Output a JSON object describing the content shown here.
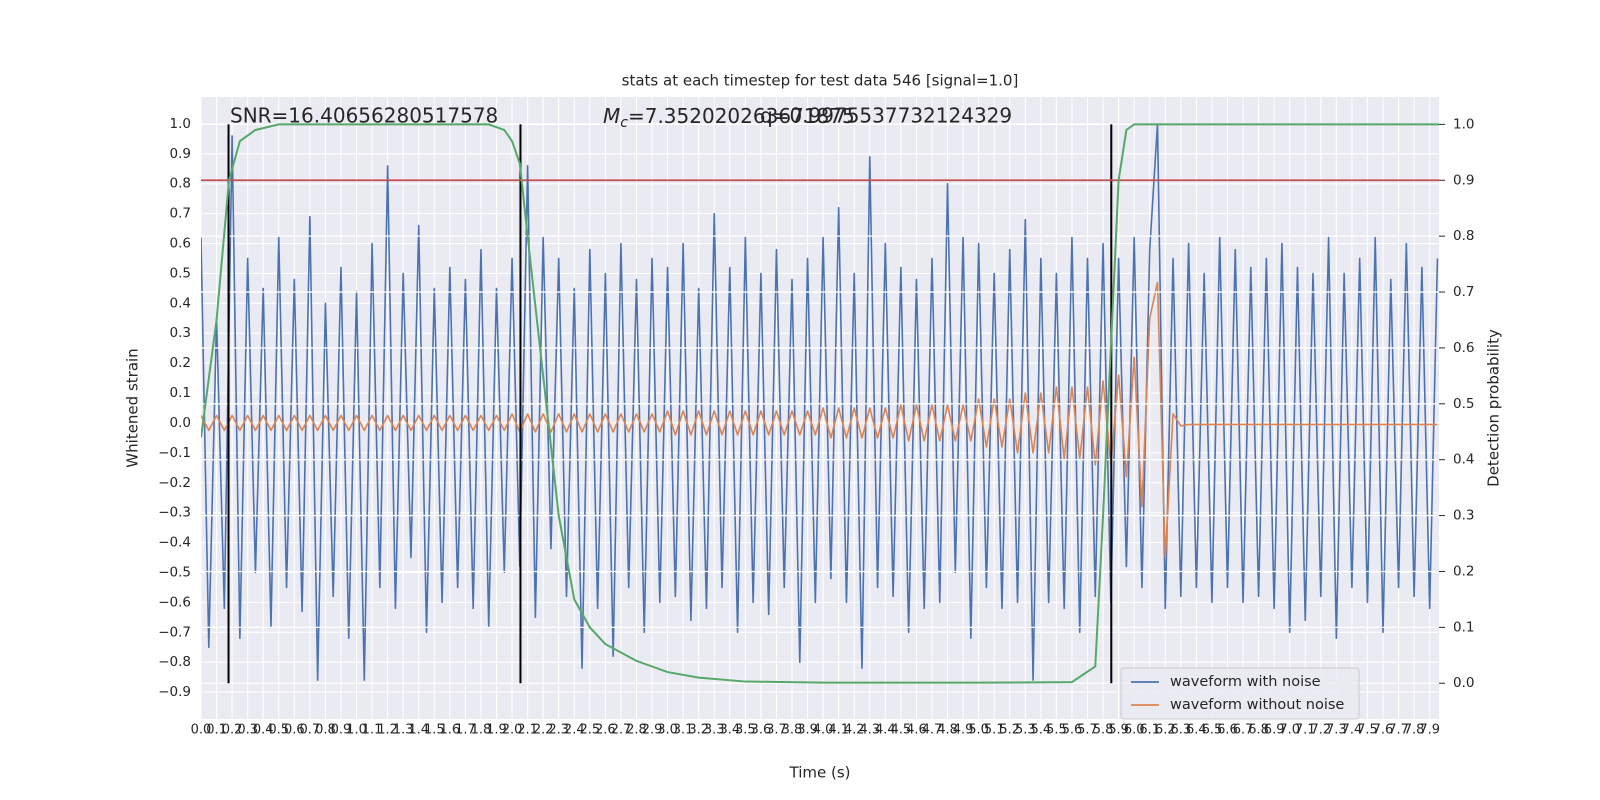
{
  "chart_data": {
    "type": "line",
    "title": "stats at each timestep for test data 546 [signal=1.0]",
    "x_label": "Time (s)",
    "y_label": "Whitened strain",
    "y2_label": "Detection probability",
    "annotations": {
      "snr": "SNR=16.40656280517578",
      "mc_symbol": "M",
      "mc_subscript": "c",
      "mc_value": "=7.352020263671875",
      "q": "q=0.9975537732124329"
    },
    "xlim": [
      0,
      7.96
    ],
    "ylim": [
      -0.99,
      1.09
    ],
    "y2lim": [
      -0.064,
      1.049
    ],
    "grid": true,
    "legend_loc": "lower right",
    "xticks": [
      {
        "value": 0,
        "label": "0.0"
      },
      0.1,
      0.2,
      0.3,
      0.4,
      0.5,
      0.6,
      0.7,
      0.8,
      0.9,
      {
        "value": 1,
        "label": "1.0"
      },
      1.1,
      1.2,
      1.3,
      1.4,
      1.5,
      1.6,
      1.7,
      1.8,
      1.9,
      {
        "value": 2,
        "label": "2.0"
      },
      2.1,
      2.2,
      2.3,
      2.4,
      2.5,
      2.6,
      2.7,
      2.8,
      2.9,
      {
        "value": 3,
        "label": "3.0"
      },
      3.1,
      3.2,
      3.3,
      3.4,
      3.5,
      3.6,
      3.7,
      3.8,
      3.9,
      {
        "value": 4,
        "label": "4.0"
      },
      4.1,
      4.2,
      4.3,
      4.4,
      4.5,
      4.6,
      4.7,
      4.8,
      4.9,
      {
        "value": 5,
        "label": "5.0"
      },
      5.1,
      5.2,
      5.3,
      5.4,
      5.5,
      5.6,
      5.7,
      5.8,
      5.9,
      {
        "value": 6,
        "label": "6.0"
      },
      6.1,
      6.2,
      6.3,
      6.4,
      6.5,
      6.6,
      6.7,
      6.8,
      6.9,
      {
        "value": 7,
        "label": "7.0"
      },
      7.1,
      7.2,
      7.3,
      7.4,
      7.5,
      7.6,
      7.7,
      7.8,
      7.9
    ],
    "yticks": [
      {
        "value": -0.9,
        "label": "−0.9"
      },
      {
        "value": -0.8,
        "label": "−0.8"
      },
      {
        "value": -0.7,
        "label": "−0.7"
      },
      {
        "value": -0.6,
        "label": "−0.6"
      },
      {
        "value": -0.5,
        "label": "−0.5"
      },
      {
        "value": -0.4,
        "label": "−0.4"
      },
      {
        "value": -0.3,
        "label": "−0.3"
      },
      {
        "value": -0.2,
        "label": "−0.2"
      },
      {
        "value": -0.1,
        "label": "−0.1"
      },
      {
        "value": 0,
        "label": "0.0"
      },
      0.1,
      0.2,
      0.3,
      0.4,
      0.5,
      0.6,
      0.7,
      0.8,
      0.9,
      {
        "value": 1,
        "label": "1.0"
      }
    ],
    "y2ticks": [
      {
        "value": 0,
        "label": "0.0"
      },
      0.1,
      0.2,
      0.3,
      0.4,
      0.5,
      0.6,
      0.7,
      0.8,
      0.9,
      {
        "value": 1,
        "label": "1.0"
      }
    ],
    "x": [
      0,
      0.05,
      0.1,
      0.15,
      0.2,
      0.25,
      0.3,
      0.35,
      0.4,
      0.45,
      0.5,
      0.55,
      0.6,
      0.65,
      0.7,
      0.75,
      0.8,
      0.85,
      0.9,
      0.95,
      1,
      1.05,
      1.1,
      1.15,
      1.2,
      1.25,
      1.3,
      1.35,
      1.4,
      1.45,
      1.5,
      1.55,
      1.6,
      1.65,
      1.7,
      1.75,
      1.8,
      1.85,
      1.9,
      1.95,
      2,
      2.05,
      2.1,
      2.15,
      2.2,
      2.25,
      2.3,
      2.35,
      2.4,
      2.45,
      2.5,
      2.55,
      2.6,
      2.65,
      2.7,
      2.75,
      2.8,
      2.85,
      2.9,
      2.95,
      3,
      3.05,
      3.1,
      3.15,
      3.2,
      3.25,
      3.3,
      3.35,
      3.4,
      3.45,
      3.5,
      3.55,
      3.6,
      3.65,
      3.7,
      3.75,
      3.8,
      3.85,
      3.9,
      3.95,
      4,
      4.05,
      4.1,
      4.15,
      4.2,
      4.25,
      4.3,
      4.35,
      4.4,
      4.45,
      4.5,
      4.55,
      4.6,
      4.65,
      4.7,
      4.75,
      4.8,
      4.85,
      4.9,
      4.95,
      5,
      5.05,
      5.1,
      5.15,
      5.2,
      5.25,
      5.3,
      5.35,
      5.4,
      5.45,
      5.5,
      5.55,
      5.6,
      5.65,
      5.7,
      5.75,
      5.8,
      5.85,
      5.9,
      5.95,
      6,
      6.05,
      6.1,
      6.15,
      6.2,
      6.25,
      6.3,
      6.35,
      6.4,
      6.45,
      6.5,
      6.55,
      6.6,
      6.65,
      6.7,
      6.75,
      6.8,
      6.85,
      6.9,
      6.95,
      7,
      7.05,
      7.1,
      7.15,
      7.2,
      7.25,
      7.3,
      7.35,
      7.4,
      7.45,
      7.5,
      7.55,
      7.6,
      7.65,
      7.7,
      7.75,
      7.8,
      7.85,
      7.9,
      7.95
    ],
    "series": [
      {
        "name": "waveform with noise",
        "color": "#4c72b0",
        "values": [
          0.62,
          -0.75,
          0.35,
          -0.62,
          0.96,
          -0.72,
          0.55,
          -0.5,
          0.45,
          -0.68,
          0.62,
          -0.55,
          0.48,
          -0.63,
          0.69,
          -0.86,
          0.4,
          -0.58,
          0.52,
          -0.72,
          0.44,
          -0.86,
          0.6,
          -0.55,
          0.86,
          -0.62,
          0.5,
          -0.45,
          0.66,
          -0.7,
          0.45,
          -0.6,
          0.52,
          -0.55,
          0.48,
          -0.62,
          0.58,
          -0.68,
          0.45,
          -0.5,
          0.55,
          -0.48,
          0.86,
          -0.65,
          0.62,
          -0.42,
          0.55,
          -0.58,
          0.45,
          -0.82,
          0.58,
          -0.62,
          0.5,
          -0.78,
          0.6,
          -0.55,
          0.48,
          -0.7,
          0.55,
          -0.6,
          0.52,
          -0.58,
          0.6,
          -0.66,
          0.45,
          -0.62,
          0.7,
          -0.55,
          0.52,
          -0.7,
          0.62,
          -0.6,
          0.5,
          -0.64,
          0.58,
          -0.55,
          0.48,
          -0.8,
          0.55,
          -0.6,
          0.62,
          -0.52,
          0.72,
          -0.6,
          0.5,
          -0.82,
          0.89,
          -0.55,
          0.6,
          -0.58,
          0.52,
          -0.7,
          0.48,
          -0.62,
          0.55,
          -0.6,
          0.8,
          -0.5,
          0.62,
          -0.72,
          0.6,
          -0.55,
          0.5,
          -0.62,
          0.58,
          -0.6,
          0.68,
          -0.86,
          0.55,
          -0.6,
          0.5,
          -0.62,
          0.62,
          -0.7,
          0.55,
          -0.58,
          0.6,
          -0.6,
          0.55,
          -0.48,
          0.62,
          -0.55,
          0.58,
          1.0,
          -0.62,
          0.55,
          -0.58,
          0.6,
          -0.55,
          0.5,
          -0.6,
          0.62,
          -0.55,
          0.58,
          -0.6,
          0.52,
          -0.58,
          0.55,
          -0.62,
          0.6,
          -0.7,
          0.52,
          -0.66,
          0.5,
          -0.58,
          0.62,
          -0.72,
          0.5,
          -0.55,
          0.55,
          -0.6,
          0.62,
          -0.7,
          0.48,
          -0.55,
          0.6,
          -0.58,
          0.52,
          -0.62,
          0.55
        ]
      },
      {
        "name": "waveform without noise",
        "color": "#dd8452",
        "values": [
          0.025,
          -0.025,
          0.025,
          -0.025,
          0.025,
          -0.025,
          0.025,
          -0.025,
          0.025,
          -0.025,
          0.025,
          -0.025,
          0.025,
          -0.025,
          0.025,
          -0.025,
          0.025,
          -0.025,
          0.025,
          -0.025,
          0.025,
          -0.025,
          0.025,
          -0.025,
          0.025,
          -0.025,
          0.025,
          -0.025,
          0.025,
          -0.025,
          0.025,
          -0.025,
          0.025,
          -0.025,
          0.025,
          -0.025,
          0.025,
          -0.025,
          0.025,
          -0.025,
          0.03,
          -0.03,
          0.03,
          -0.03,
          0.03,
          -0.03,
          0.03,
          -0.03,
          0.03,
          -0.03,
          0.03,
          -0.03,
          0.03,
          -0.03,
          0.03,
          -0.03,
          0.03,
          -0.03,
          0.03,
          -0.03,
          0.04,
          -0.04,
          0.04,
          -0.04,
          0.04,
          -0.04,
          0.04,
          -0.04,
          0.04,
          -0.04,
          0.04,
          -0.04,
          0.04,
          -0.04,
          0.04,
          -0.04,
          0.04,
          -0.04,
          0.04,
          -0.04,
          0.05,
          -0.05,
          0.05,
          -0.05,
          0.05,
          -0.05,
          0.05,
          -0.05,
          0.05,
          -0.05,
          0.06,
          -0.06,
          0.06,
          -0.06,
          0.06,
          -0.06,
          0.06,
          -0.06,
          0.06,
          -0.06,
          0.08,
          -0.08,
          0.08,
          -0.08,
          0.08,
          -0.1,
          0.1,
          -0.1,
          0.1,
          -0.1,
          0.12,
          -0.12,
          0.12,
          -0.12,
          0.12,
          -0.14,
          0.14,
          -0.14,
          0.16,
          -0.18,
          0.22,
          -0.28,
          0.35,
          0.47,
          -0.45,
          0.03,
          -0.01,
          -0.005,
          -0.005,
          -0.005,
          -0.005,
          -0.005,
          -0.005,
          -0.005,
          -0.005,
          -0.005,
          -0.005,
          -0.005,
          -0.005,
          -0.005,
          -0.005,
          -0.005,
          -0.005,
          -0.005,
          -0.005,
          -0.005,
          -0.005,
          -0.005,
          -0.005,
          -0.005,
          -0.005,
          -0.005,
          -0.005,
          -0.005,
          -0.005,
          -0.005,
          -0.005,
          -0.005,
          -0.005,
          -0.005
        ]
      }
    ],
    "probability": {
      "color": "#55a868",
      "axis": "y2",
      "x": [
        0,
        0.1,
        0.18,
        0.25,
        0.35,
        0.5,
        0.7,
        1.0,
        1.5,
        1.85,
        1.95,
        2.0,
        2.05,
        2.1,
        2.2,
        2.3,
        2.4,
        2.5,
        2.6,
        2.8,
        3.0,
        3.2,
        3.5,
        4.0,
        5.0,
        5.6,
        5.75,
        5.8,
        5.85,
        5.9,
        5.95,
        6.0,
        7.96
      ],
      "values": [
        0.44,
        0.65,
        0.9,
        0.97,
        0.99,
        1.0,
        1.0,
        1.0,
        1.0,
        1.0,
        0.99,
        0.97,
        0.93,
        0.8,
        0.55,
        0.3,
        0.15,
        0.1,
        0.07,
        0.04,
        0.02,
        0.01,
        0.003,
        0.001,
        0.001,
        0.002,
        0.03,
        0.3,
        0.6,
        0.9,
        0.99,
        1.0,
        1.0
      ]
    },
    "threshold": {
      "value": 0.9,
      "color": "#c44e52",
      "axis": "y2"
    },
    "detections": {
      "x": [
        0.177,
        2.054,
        5.853
      ],
      "color": "#000000",
      "axis": "y2",
      "span": [
        0,
        1
      ]
    }
  }
}
